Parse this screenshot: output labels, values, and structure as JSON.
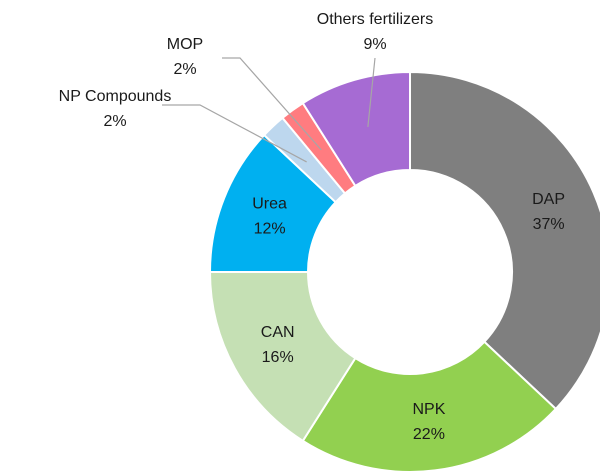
{
  "chart_data": {
    "type": "donut",
    "categories": [
      "DAP",
      "NPK",
      "CAN",
      "Urea",
      "NP Compounds",
      "MOP",
      "Others fertilizers"
    ],
    "values": [
      37,
      22,
      16,
      12,
      2,
      2,
      9
    ],
    "value_labels": [
      "37%",
      "22%",
      "16%",
      "12%",
      "2%",
      "2%",
      "9%"
    ],
    "colors": [
      "#7f7f7f",
      "#92d050",
      "#c5e0b4",
      "#00b0f0",
      "#bdd7ee",
      "#ff7c80",
      "#a66bd3"
    ]
  }
}
